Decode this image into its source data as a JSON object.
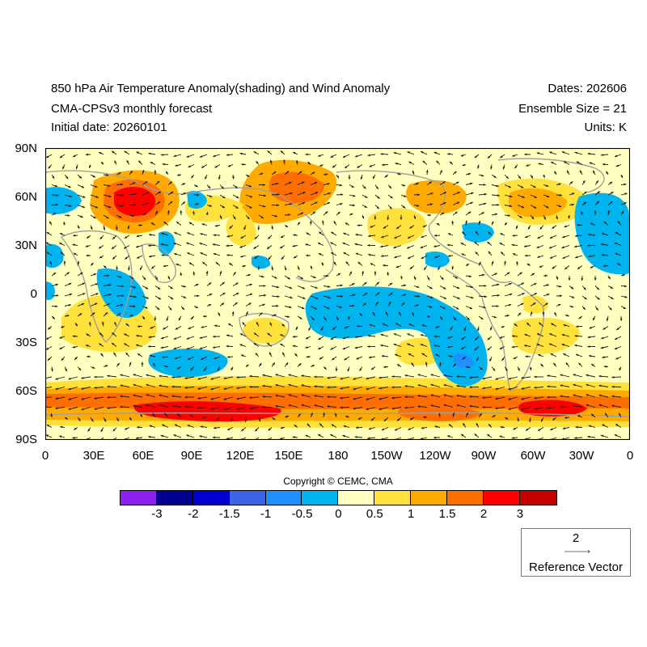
{
  "titles": {
    "left_line1": "850 hPa Air Temperature Anomaly(shading) and Wind Anomaly",
    "left_line2": "CMA-CPSv3 monthly forecast",
    "left_line3": "Initial date: 20260101",
    "right_line1": "Dates: 202606",
    "right_line2": "Ensemble Size = 21",
    "right_line3": "Units: K"
  },
  "map": {
    "projection": "cylindrical equidistant, global",
    "background_color": "#ffffc0",
    "coastline_color": "#a0a0a0",
    "lat_ticks": [
      "90N",
      "60N",
      "30N",
      "0",
      "30S",
      "60S",
      "90S"
    ],
    "lon_ticks": [
      "0",
      "30E",
      "60E",
      "90E",
      "120E",
      "150E",
      "180",
      "150W",
      "120W",
      "90W",
      "60W",
      "30W",
      "0"
    ]
  },
  "copyright": "Copyright © CEMC, CMA",
  "colorbar": {
    "colors": [
      "#8c20f0",
      "#000090",
      "#0000d0",
      "#3c64e8",
      "#1e90ff",
      "#00b4f0",
      "#ffffc0",
      "#ffe13c",
      "#ffaa00",
      "#ff6e00",
      "#ff0000",
      "#c80000"
    ],
    "labels": [
      "-3",
      "-2",
      "-1.5",
      "-1",
      "-0.5",
      "0",
      "0.5",
      "1",
      "1.5",
      "2",
      "3"
    ]
  },
  "reference_vector": {
    "value": "2",
    "label": "Reference Vector"
  }
}
